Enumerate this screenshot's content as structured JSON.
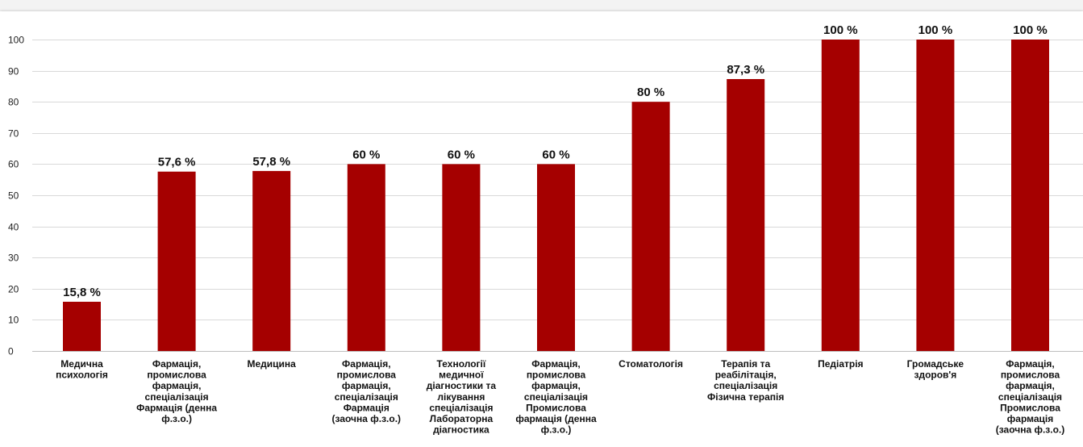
{
  "chart_data": {
    "type": "bar",
    "title": "",
    "xlabel": "",
    "ylabel": "",
    "ylim": [
      0,
      100
    ],
    "yticks": [
      0,
      10,
      20,
      30,
      40,
      50,
      60,
      70,
      80,
      90,
      100
    ],
    "grid": true,
    "legend": "none",
    "bar_color": "#a50000",
    "categories": [
      [
        "Медична",
        "психологія"
      ],
      [
        "Фармація,",
        "промислова",
        "фармація,",
        "спеціалізація",
        "Фармація (денна",
        "ф.з.о.)"
      ],
      [
        "Медицина"
      ],
      [
        "Фармація,",
        "промислова",
        "фармація,",
        "спеціалізація",
        "Фармація",
        "(заочна ф.з.о.)"
      ],
      [
        "Технології",
        "медичної",
        "діагностики  та",
        "лікування",
        "спеціалізація",
        "Лабораторна",
        "діагностика"
      ],
      [
        "Фармація,",
        "промислова",
        "фармація,",
        "спеціалізація",
        "Промислова",
        "фармація (денна",
        "ф.з.о.)"
      ],
      [
        "Стоматологія"
      ],
      [
        "Терапія та",
        "реабілітація,",
        "спеціалізація",
        "Фізична терапія"
      ],
      [
        "Педіатрія"
      ],
      [
        "Громадське",
        "здоров'я"
      ],
      [
        "Фармація,",
        "промислова",
        "фармація,",
        "спеціалізація",
        "Промислова",
        "фармація",
        "(заочна ф.з.о.)"
      ]
    ],
    "values": [
      15.8,
      57.6,
      57.8,
      60,
      60,
      60,
      80,
      87.3,
      100,
      100,
      100
    ],
    "data_labels": [
      "15,8 %",
      "57,6 %",
      "57,8 %",
      "60 %",
      "60 %",
      "60 %",
      "80 %",
      "87,3 %",
      "100 %",
      "100 %",
      "100 %"
    ]
  }
}
